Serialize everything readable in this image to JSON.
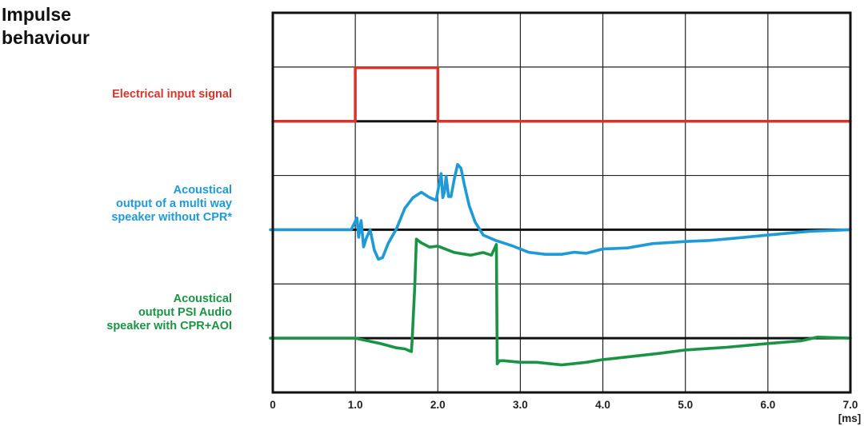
{
  "title_lines": [
    "Impulse",
    "behaviour"
  ],
  "colors": {
    "input": "#d9342b",
    "multiway": "#1e9ad6",
    "psi": "#1a9444",
    "grid": "#222222"
  },
  "chart_data": {
    "type": "line",
    "x_unit": "[ms]",
    "xlim": [
      0,
      7
    ],
    "x_ticks": [
      "0",
      "1.0",
      "2.0",
      "3.0",
      "4.0",
      "5.0",
      "6.0",
      "7.0"
    ],
    "grid": true,
    "series": [
      {
        "name": "Electrical input signal",
        "label_lines": [
          "Electrical input signal"
        ],
        "color_key": "input",
        "x": [
          0,
          1.0,
          1.0,
          2.0,
          2.0,
          7.0
        ],
        "y": [
          0,
          0,
          1,
          1,
          0,
          0
        ]
      },
      {
        "name": "Acoustical output of a multi way speaker without CPR*",
        "label_lines": [
          "Acoustical",
          "output of a multi way",
          "speaker without CPR*"
        ],
        "color_key": "multiway",
        "x": [
          0,
          0.5,
          0.95,
          1.02,
          1.04,
          1.07,
          1.1,
          1.13,
          1.18,
          1.23,
          1.28,
          1.33,
          1.4,
          1.5,
          1.6,
          1.7,
          1.8,
          1.9,
          1.98,
          2.04,
          2.06,
          2.08,
          2.1,
          2.13,
          2.16,
          2.2,
          2.24,
          2.28,
          2.32,
          2.38,
          2.45,
          2.55,
          2.7,
          2.9,
          3.1,
          3.3,
          3.5,
          3.65,
          3.8,
          4.0,
          4.3,
          4.6,
          5.0,
          5.3,
          5.6,
          6.0,
          6.5,
          7.0
        ],
        "y": [
          0.0,
          0.0,
          0.0,
          0.22,
          -0.14,
          0.17,
          -0.32,
          -0.17,
          0.0,
          -0.38,
          -0.55,
          -0.52,
          -0.25,
          0.02,
          0.4,
          0.6,
          0.7,
          0.6,
          0.55,
          1.05,
          0.6,
          0.7,
          1.0,
          0.62,
          0.62,
          0.95,
          1.22,
          1.15,
          0.85,
          0.45,
          0.15,
          -0.1,
          -0.2,
          -0.3,
          -0.42,
          -0.46,
          -0.46,
          -0.42,
          -0.44,
          -0.36,
          -0.34,
          -0.26,
          -0.22,
          -0.2,
          -0.16,
          -0.1,
          -0.03,
          0.0
        ]
      },
      {
        "name": "Acoustical output PSI Audio speaker with CPR+AOI",
        "label_lines": [
          "Acoustical",
          "output PSI Audio",
          "speaker with CPR+AOI"
        ],
        "color_key": "psi",
        "x": [
          0,
          0.5,
          1.0,
          1.3,
          1.5,
          1.6,
          1.68,
          1.69,
          1.72,
          1.74,
          1.8,
          1.9,
          2.0,
          2.2,
          2.4,
          2.55,
          2.65,
          2.71,
          2.72,
          2.75,
          2.8,
          3.0,
          3.2,
          3.5,
          3.8,
          4.0,
          4.3,
          4.7,
          5.0,
          5.5,
          6.0,
          6.4,
          6.6,
          7.0
        ],
        "y": [
          0.0,
          0.0,
          0.0,
          -0.1,
          -0.18,
          -0.2,
          -0.25,
          0.0,
          0.95,
          1.85,
          1.78,
          1.7,
          1.72,
          1.6,
          1.55,
          1.6,
          1.55,
          1.75,
          -0.48,
          -0.42,
          -0.42,
          -0.45,
          -0.45,
          -0.5,
          -0.45,
          -0.4,
          -0.35,
          -0.28,
          -0.22,
          -0.17,
          -0.1,
          -0.05,
          0.02,
          0.0
        ]
      }
    ]
  }
}
